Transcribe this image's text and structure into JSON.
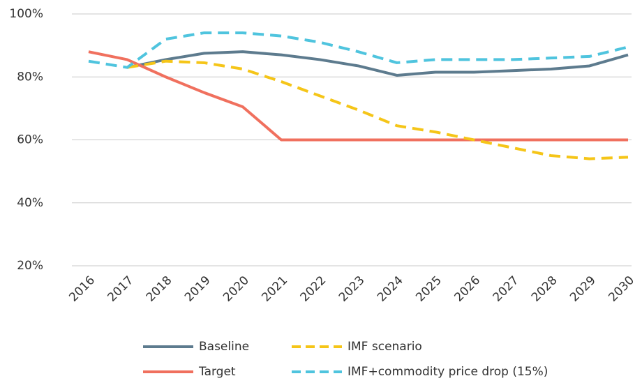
{
  "chart_data": {
    "type": "line",
    "categories": [
      "2016",
      "2017",
      "2018",
      "2019",
      "2020",
      "2021",
      "2022",
      "2023",
      "2024",
      "2025",
      "2026",
      "2027",
      "2028",
      "2029",
      "2030"
    ],
    "series": [
      {
        "name": "Baseline",
        "color": "#5d7b8e",
        "dashed": false,
        "values": [
          null,
          83,
          85.5,
          87.5,
          88,
          87,
          85.5,
          83.5,
          80.5,
          81.5,
          81.5,
          82,
          82.5,
          83.5,
          87
        ]
      },
      {
        "name": "Target",
        "color": "#f0705e",
        "dashed": false,
        "values": [
          88,
          85.5,
          80,
          75,
          70.5,
          60,
          60,
          60,
          60,
          60,
          60,
          60,
          60,
          60,
          60
        ]
      },
      {
        "name": "IMF scenario",
        "color": "#f5c518",
        "dashed": true,
        "values": [
          null,
          83,
          85,
          84.5,
          82.5,
          78.5,
          74,
          69.5,
          64.5,
          62.5,
          60,
          57.5,
          55,
          54,
          54.5
        ]
      },
      {
        "name": "IMF+commodity price drop (15%)",
        "color": "#4fc4de",
        "dashed": true,
        "values": [
          85,
          83,
          92,
          94,
          94,
          93,
          91,
          88,
          84.5,
          85.5,
          85.5,
          85.5,
          86,
          86.5,
          89.5
        ]
      }
    ],
    "ylim": [
      20,
      100
    ],
    "yticks": [
      {
        "value": 20,
        "label": "20%"
      },
      {
        "value": 40,
        "label": "40%"
      },
      {
        "value": 60,
        "label": "60%"
      },
      {
        "value": 80,
        "label": "80%"
      },
      {
        "value": 100,
        "label": "100%"
      }
    ],
    "grid": true,
    "legend": "bottom"
  }
}
